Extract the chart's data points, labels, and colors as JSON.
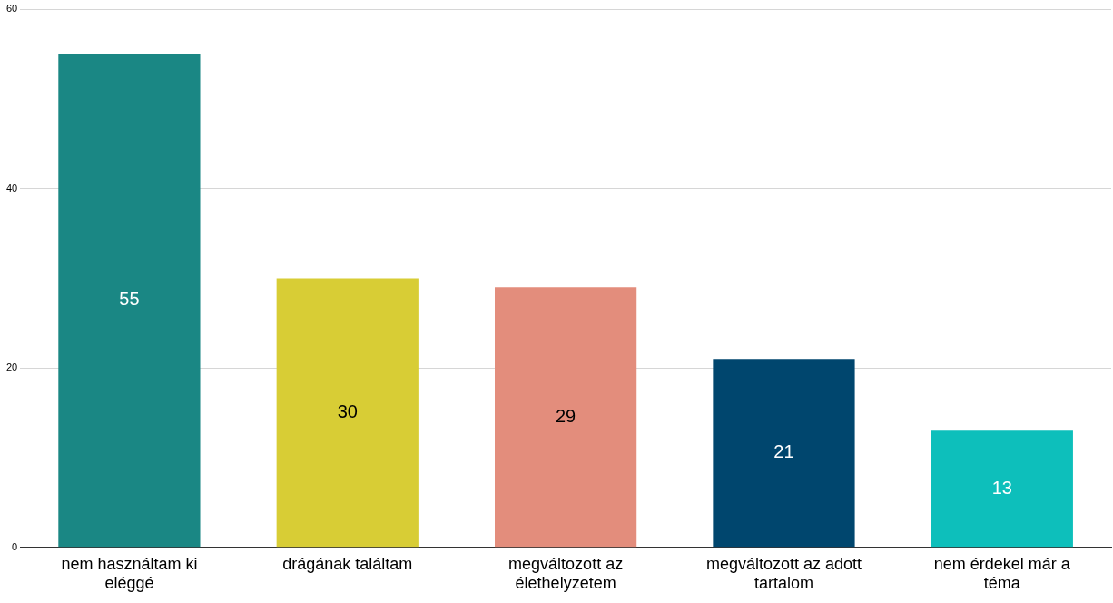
{
  "chart_data": {
    "type": "bar",
    "categories": [
      "nem használtam ki eléggé",
      "drágának találtam",
      "megváltozott az élethelyzetem",
      "megváltozott az adott tartalom",
      "nem érdekel már a téma"
    ],
    "values": [
      55,
      30,
      29,
      21,
      13
    ],
    "colors": [
      "#1a8784",
      "#d8cd35",
      "#e38d7c",
      "#00466e",
      "#0dbfbb"
    ],
    "ylim": [
      0,
      60
    ],
    "yticks": [
      0,
      20,
      40,
      60
    ],
    "grid": "y",
    "data_labels": true,
    "legend": false
  }
}
